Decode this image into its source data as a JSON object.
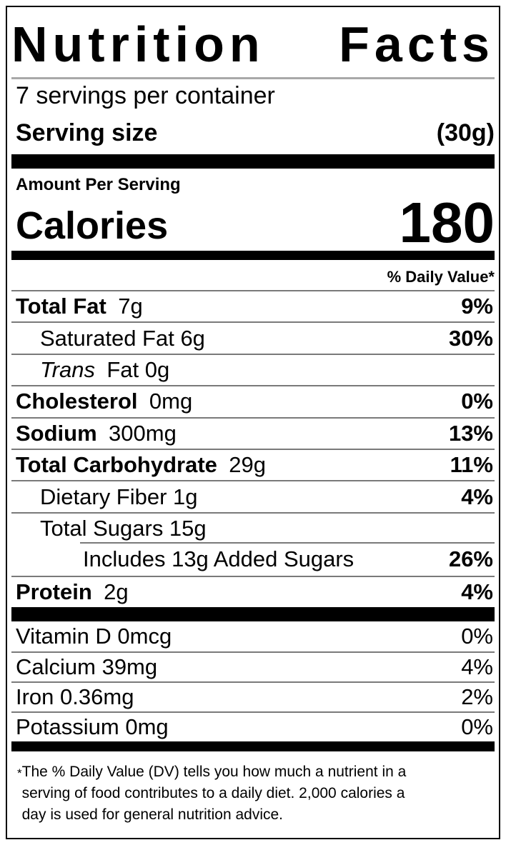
{
  "label": {
    "title": {
      "word1": "Nutrition",
      "word2": "Facts"
    },
    "servings_per_container": "7 servings per container",
    "serving_size": {
      "label": "Serving size",
      "value": "(30g)"
    },
    "amount_per_serving": "Amount Per Serving",
    "calories": {
      "label": "Calories",
      "value": "180"
    },
    "daily_value_header": "% Daily Value*",
    "nutrients": [
      {
        "italic": "",
        "bold": "Total Fat",
        "regular": "7g",
        "dv": "9%"
      },
      {
        "italic": "",
        "bold": "",
        "regular": "Saturated Fat 6g",
        "dv": "30%"
      },
      {
        "italic": "Trans",
        "bold": "",
        "regular": "Fat 0g",
        "dv": ""
      },
      {
        "italic": "",
        "bold": "Cholesterol",
        "regular": "0mg",
        "dv": "0%"
      },
      {
        "italic": "",
        "bold": "Sodium",
        "regular": "300mg",
        "dv": "13%"
      },
      {
        "italic": "",
        "bold": "Total Carbohydrate",
        "regular": "29g",
        "dv": "11%"
      },
      {
        "italic": "",
        "bold": "",
        "regular": "Dietary Fiber 1g",
        "dv": "4%"
      },
      {
        "italic": "",
        "bold": "",
        "regular": "Total Sugars 15g",
        "dv": ""
      },
      {
        "italic": "",
        "bold": "",
        "regular": "Includes 13g Added Sugars",
        "dv": "26%"
      },
      {
        "italic": "",
        "bold": "Protein",
        "regular": "2g",
        "dv": "4%"
      }
    ],
    "micronutrients": [
      {
        "name": "Vitamin D 0mcg",
        "dv": "0%"
      },
      {
        "name": "Calcium 39mg",
        "dv": "4%"
      },
      {
        "name": "Iron 0.36mg",
        "dv": "2%"
      },
      {
        "name": "Potassium 0mg",
        "dv": "0%"
      }
    ],
    "footnote": {
      "marker": "*",
      "lines": [
        "The % Daily Value (DV) tells you how much a nutrient in a",
        "serving of food contributes to a daily diet. 2,000 calories a",
        "day is used for general nutrition advice."
      ]
    }
  },
  "colors": {
    "text": "#000000",
    "background": "#ffffff",
    "bar": "#000000",
    "hairline": "#7a7a7a",
    "title_underline": "#a9a9a9"
  }
}
